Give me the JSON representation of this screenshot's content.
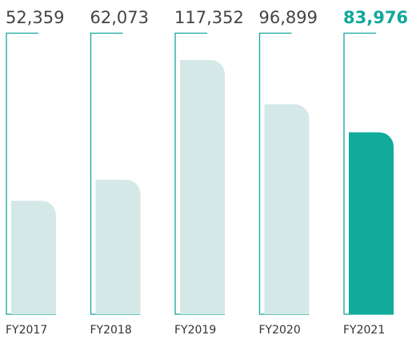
{
  "chart_data": {
    "type": "bar",
    "categories": [
      "FY2017",
      "FY2018",
      "FY2019",
      "FY2020",
      "FY2021"
    ],
    "values": [
      52359,
      62073,
      117352,
      96899,
      83976
    ],
    "value_labels": [
      "52,359",
      "62,073",
      "117,352",
      "96,899",
      "83,976"
    ],
    "colors": [
      "#d4e9e7",
      "#d4e9e7",
      "#d4e9e7",
      "#d4e9e7",
      "#10ab9b"
    ],
    "frame_color": "#10a89b",
    "highlight": "FY2021"
  }
}
